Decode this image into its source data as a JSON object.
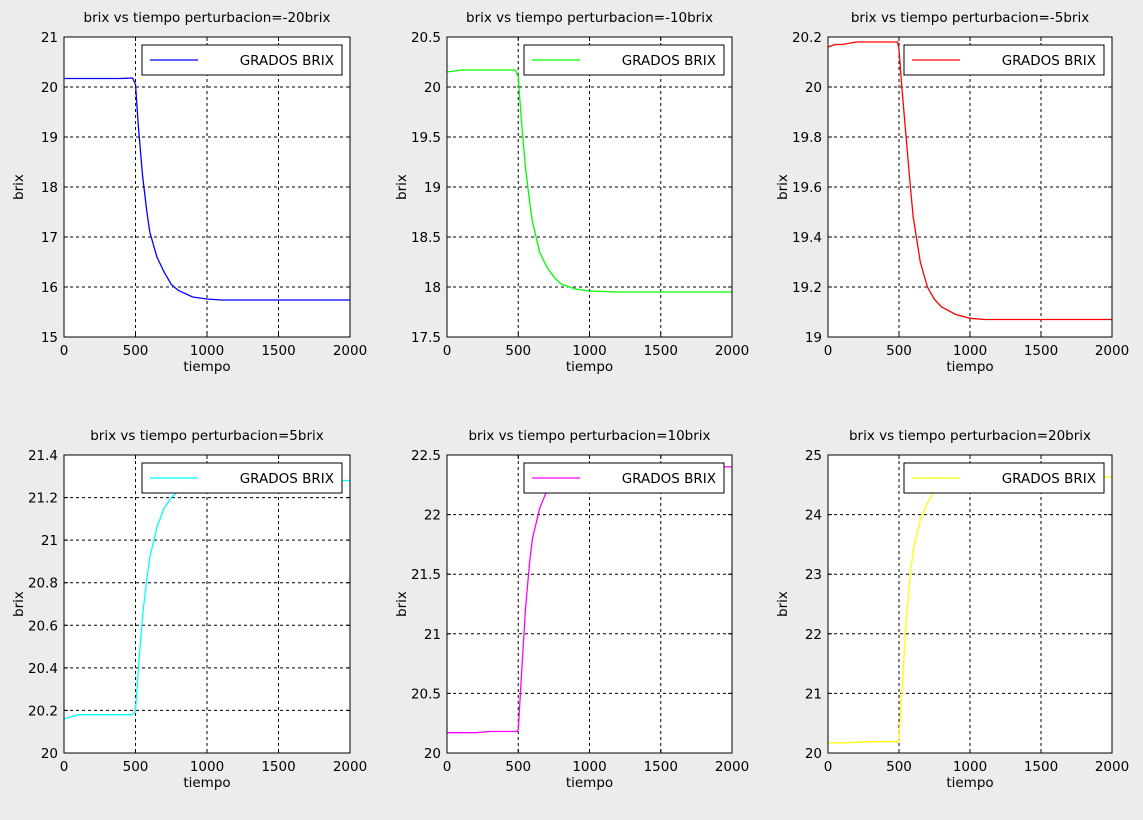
{
  "figure": {
    "background": "#ececec"
  },
  "chart_data": [
    {
      "type": "line",
      "title": "brix vs tiempo perturbacion=-20brix",
      "xlabel": "tiempo",
      "ylabel": "brix",
      "xlim": [
        0,
        2000
      ],
      "ylim": [
        15,
        21
      ],
      "xticks": [
        0,
        500,
        1000,
        1500,
        2000
      ],
      "yticks": [
        15,
        16,
        17,
        18,
        19,
        20,
        21
      ],
      "xtick_labels": [
        "0",
        "500",
        "1000",
        "1500",
        "2000"
      ],
      "ytick_labels": [
        "15",
        "16",
        "17",
        "18",
        "19",
        "20",
        "21"
      ],
      "grid": true,
      "legend_position": "top-right",
      "series": [
        {
          "name": "GRADOS BRIX",
          "color": "#0000ff",
          "x": [
            0,
            100,
            200,
            300,
            400,
            480,
            500,
            520,
            550,
            580,
            600,
            650,
            700,
            750,
            800,
            900,
            1000,
            1100,
            1200,
            1500,
            2000
          ],
          "y": [
            20.17,
            20.17,
            20.17,
            20.17,
            20.17,
            20.18,
            20.05,
            19.2,
            18.2,
            17.5,
            17.1,
            16.6,
            16.3,
            16.05,
            15.93,
            15.8,
            15.76,
            15.74,
            15.74,
            15.74,
            15.74
          ]
        }
      ]
    },
    {
      "type": "line",
      "title": "brix vs tiempo perturbacion=-10brix",
      "xlabel": "tiempo",
      "ylabel": "brix",
      "xlim": [
        0,
        2000
      ],
      "ylim": [
        17.5,
        20.5
      ],
      "xticks": [
        0,
        500,
        1000,
        1500,
        2000
      ],
      "yticks": [
        17.5,
        18,
        18.5,
        19,
        19.5,
        20,
        20.5
      ],
      "xtick_labels": [
        "0",
        "500",
        "1000",
        "1500",
        "2000"
      ],
      "ytick_labels": [
        "17.5",
        "18",
        "18.5",
        "19",
        "19.5",
        "20",
        "20.5"
      ],
      "grid": true,
      "legend_position": "top-right",
      "series": [
        {
          "name": "GRADOS BRIX",
          "color": "#00ff00",
          "x": [
            0,
            50,
            100,
            200,
            300,
            400,
            480,
            500,
            520,
            550,
            580,
            600,
            650,
            700,
            750,
            800,
            900,
            1000,
            1200,
            1500,
            2000
          ],
          "y": [
            20.15,
            20.16,
            20.17,
            20.17,
            20.17,
            20.17,
            20.17,
            20.1,
            19.7,
            19.2,
            18.85,
            18.65,
            18.35,
            18.2,
            18.1,
            18.03,
            17.98,
            17.96,
            17.95,
            17.95,
            17.95
          ]
        }
      ]
    },
    {
      "type": "line",
      "title": "brix vs tiempo perturbacion=-5brix",
      "xlabel": "tiempo",
      "ylabel": "brix",
      "xlim": [
        0,
        2000
      ],
      "ylim": [
        19,
        20.2
      ],
      "xticks": [
        0,
        500,
        1000,
        1500,
        2000
      ],
      "yticks": [
        19,
        19.2,
        19.4,
        19.6,
        19.8,
        20,
        20.2
      ],
      "xtick_labels": [
        "0",
        "500",
        "1000",
        "1500",
        "2000"
      ],
      "ytick_labels": [
        "19",
        "19.2",
        "19.4",
        "19.6",
        "19.8",
        "20",
        "20.2"
      ],
      "grid": true,
      "legend_position": "top-right",
      "series": [
        {
          "name": "GRADOS BRIX",
          "color": "#ff0000",
          "x": [
            0,
            50,
            100,
            200,
            300,
            400,
            490,
            500,
            520,
            550,
            580,
            600,
            650,
            700,
            750,
            800,
            900,
            1000,
            1100,
            1500,
            2000
          ],
          "y": [
            20.16,
            20.17,
            20.17,
            20.18,
            20.18,
            20.18,
            20.18,
            20.15,
            20.0,
            19.8,
            19.6,
            19.48,
            19.3,
            19.2,
            19.15,
            19.12,
            19.09,
            19.075,
            19.07,
            19.07,
            19.07
          ]
        }
      ]
    },
    {
      "type": "line",
      "title": "brix vs tiempo perturbacion=5brix",
      "xlabel": "tiempo",
      "ylabel": "brix",
      "xlim": [
        0,
        2000
      ],
      "ylim": [
        20,
        21.4
      ],
      "xticks": [
        0,
        500,
        1000,
        1500,
        2000
      ],
      "yticks": [
        20,
        20.2,
        20.4,
        20.6,
        20.8,
        21,
        21.2,
        21.4
      ],
      "xtick_labels": [
        "0",
        "500",
        "1000",
        "1500",
        "2000"
      ],
      "ytick_labels": [
        "20",
        "20.2",
        "20.4",
        "20.6",
        "20.8",
        "21",
        "21.2",
        "21.4"
      ],
      "grid": true,
      "legend_position": "top-right",
      "series": [
        {
          "name": "GRADOS BRIX",
          "color": "#00ffff",
          "x": [
            0,
            50,
            100,
            200,
            300,
            400,
            480,
            500,
            520,
            550,
            580,
            600,
            650,
            700,
            750,
            800,
            900,
            1000,
            1200,
            1500,
            2000
          ],
          "y": [
            20.16,
            20.17,
            20.18,
            20.18,
            20.18,
            20.18,
            20.18,
            20.2,
            20.4,
            20.65,
            20.82,
            20.92,
            21.06,
            21.15,
            21.2,
            21.23,
            21.26,
            21.27,
            21.28,
            21.28,
            21.28
          ]
        }
      ]
    },
    {
      "type": "line",
      "title": "brix vs tiempo perturbacion=10brix",
      "xlabel": "tiempo",
      "ylabel": "brix",
      "xlim": [
        0,
        2000
      ],
      "ylim": [
        20,
        22.5
      ],
      "xticks": [
        0,
        500,
        1000,
        1500,
        2000
      ],
      "yticks": [
        20,
        20.5,
        21,
        21.5,
        22,
        22.5
      ],
      "xtick_labels": [
        "0",
        "500",
        "1000",
        "1500",
        "2000"
      ],
      "ytick_labels": [
        "20",
        "20.5",
        "21",
        "21.5",
        "22",
        "22.5"
      ],
      "grid": true,
      "legend_position": "top-right",
      "series": [
        {
          "name": "GRADOS BRIX",
          "color": "#ff00ff",
          "x": [
            0,
            100,
            200,
            300,
            400,
            490,
            500,
            520,
            550,
            580,
            600,
            650,
            700,
            750,
            800,
            900,
            1000,
            1200,
            1500,
            2000
          ],
          "y": [
            20.17,
            20.17,
            20.17,
            20.18,
            20.18,
            20.18,
            20.2,
            20.6,
            21.2,
            21.6,
            21.8,
            22.05,
            22.2,
            22.28,
            22.33,
            22.37,
            22.39,
            22.4,
            22.4,
            22.4
          ]
        }
      ]
    },
    {
      "type": "line",
      "title": "brix vs tiempo perturbacion=20brix",
      "xlabel": "tiempo",
      "ylabel": "brix",
      "xlim": [
        0,
        2000
      ],
      "ylim": [
        20,
        25
      ],
      "xticks": [
        0,
        500,
        1000,
        1500,
        2000
      ],
      "yticks": [
        20,
        21,
        22,
        23,
        24,
        25
      ],
      "xtick_labels": [
        "0",
        "500",
        "1000",
        "1500",
        "2000"
      ],
      "ytick_labels": [
        "20",
        "21",
        "22",
        "23",
        "24",
        "25"
      ],
      "grid": true,
      "legend_position": "top-right",
      "series": [
        {
          "name": "GRADOS BRIX",
          "color": "#ffff00",
          "x": [
            0,
            100,
            200,
            300,
            400,
            490,
            500,
            520,
            550,
            580,
            600,
            650,
            700,
            750,
            800,
            900,
            1000,
            1200,
            1500,
            2000
          ],
          "y": [
            20.17,
            20.17,
            20.18,
            20.19,
            20.19,
            20.19,
            20.25,
            21.0,
            22.2,
            23.0,
            23.4,
            23.9,
            24.2,
            24.4,
            24.5,
            24.58,
            24.62,
            24.63,
            24.63,
            24.63
          ]
        }
      ]
    }
  ]
}
